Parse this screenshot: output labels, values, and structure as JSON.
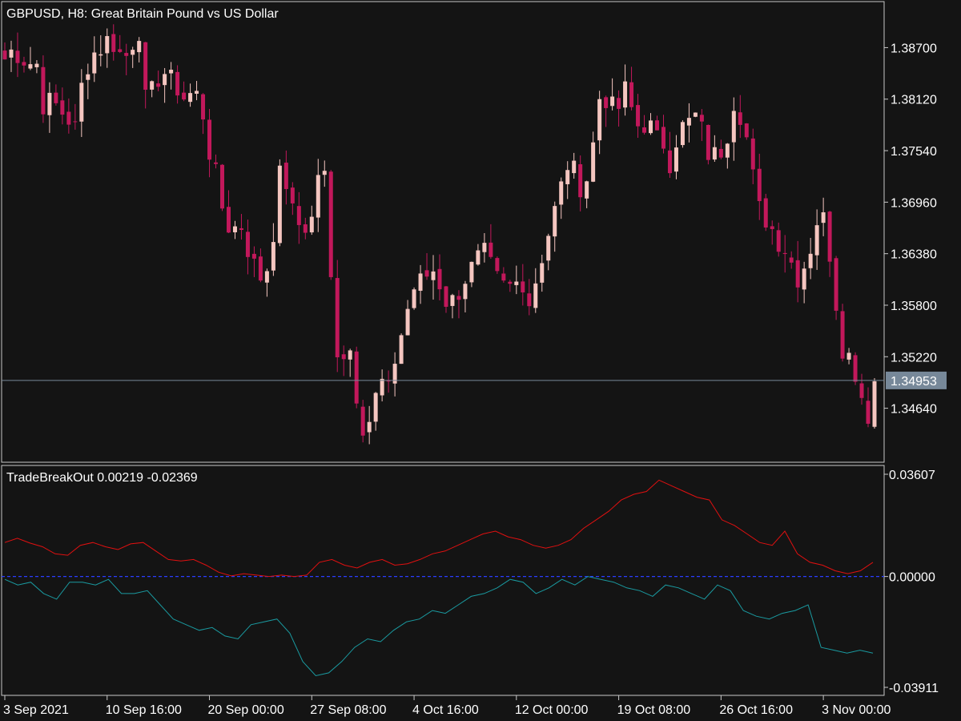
{
  "window": {
    "symbol_title": "GBPUSD, H8:  Great Britain Pound vs US Dollar"
  },
  "colors": {
    "background": "#141414",
    "frame": "#c8c8c8",
    "bull_candle": "#f5c6c0",
    "bear_candle": "#c2185b",
    "bid_line": "#778899",
    "price_label_bg": "#778899",
    "indicator_upper": "#e01010",
    "indicator_lower": "#1a9aa0",
    "zero_line": "#2a3cff"
  },
  "chart_data": [
    {
      "type": "candlestick",
      "title": "GBPUSD, H8:  Great Britain Pound vs US Dollar",
      "ylim": [
        1.3405,
        1.392
      ],
      "y_ticks": [
        1.387,
        1.3812,
        1.3754,
        1.3696,
        1.3638,
        1.358,
        1.3522,
        1.3464
      ],
      "y_tick_labels": [
        "1.38700",
        "1.38120",
        "1.37540",
        "1.36960",
        "1.36380",
        "1.35800",
        "1.35220",
        "1.34640"
      ],
      "current_price": 1.34953,
      "current_price_label": "1.34953",
      "close_path": [
        1.3857,
        1.3868,
        1.3862,
        1.3852,
        1.3856,
        1.3802,
        1.381,
        1.38,
        1.3792,
        1.3778,
        1.3838,
        1.3862,
        1.3868,
        1.3878,
        1.3875,
        1.3858,
        1.3864,
        1.3905,
        1.3805,
        1.3822,
        1.3848,
        1.3833,
        1.3826,
        1.3812,
        1.382,
        1.3812,
        1.3758,
        1.3722,
        1.368,
        1.3662,
        1.3676,
        1.3645,
        1.362,
        1.3608,
        1.364,
        1.3725,
        1.3718,
        1.367,
        1.3672,
        1.3665,
        1.373,
        1.3722,
        1.3538,
        1.3525,
        1.3535,
        1.3475,
        1.3435,
        1.3466,
        1.3495,
        1.348,
        1.353,
        1.356,
        1.3598,
        1.3605,
        1.3615,
        1.3622,
        1.3588,
        1.3582,
        1.3598,
        1.3615,
        1.3625,
        1.364,
        1.3622,
        1.3605,
        1.3598,
        1.3602,
        1.3612,
        1.3582,
        1.3618,
        1.365,
        1.368,
        1.3712,
        1.3745,
        1.372,
        1.3712,
        1.3755,
        1.382,
        1.3812,
        1.379,
        1.3825,
        1.38,
        1.3778,
        1.379,
        1.3765,
        1.3765,
        1.374,
        1.378,
        1.378,
        1.3795,
        1.3775,
        1.3745,
        1.375,
        1.3765,
        1.3812,
        1.3795,
        1.3755,
        1.369,
        1.368,
        1.3665,
        1.365,
        1.364,
        1.361,
        1.3625,
        1.365,
        1.369,
        1.366,
        1.359,
        1.353,
        1.352,
        1.3495,
        1.345,
        1.3495
      ],
      "x_tick_labels": [
        "3 Sep 2021",
        "10 Sep 16:00",
        "20 Sep 00:00",
        "27 Sep 08:00",
        "4 Oct 16:00",
        "12 Oct 00:00",
        "19 Oct 08:00",
        "26 Oct 16:00",
        "3 Nov 00:00"
      ],
      "x_tick_bar_index": [
        0,
        16,
        32,
        48,
        64,
        80,
        96,
        112,
        128
      ]
    },
    {
      "type": "line",
      "title": "TradeBreakOut 0.00219 -0.02369",
      "ylim": [
        -0.03911,
        0.03607
      ],
      "y_ticks": [
        0.03607,
        0.0,
        -0.03911
      ],
      "y_tick_labels": [
        "0.03607",
        "0.00000",
        "-0.03911"
      ],
      "zero_line": 0.0,
      "series": [
        {
          "color": "upper",
          "values": [
            0.012,
            0.0135,
            0.0118,
            0.0105,
            0.008,
            0.0075,
            0.011,
            0.012,
            0.0105,
            0.0095,
            0.0115,
            0.012,
            0.009,
            0.006,
            0.0055,
            0.006,
            0.004,
            0.0015,
            0.0002,
            0.001,
            0.0005,
            0.0,
            0.0005,
            0.0,
            0.0005,
            0.005,
            0.006,
            0.004,
            0.003,
            0.005,
            0.006,
            0.004,
            0.0045,
            0.006,
            0.008,
            0.009,
            0.011,
            0.013,
            0.015,
            0.016,
            0.014,
            0.013,
            0.011,
            0.01,
            0.011,
            0.013,
            0.017,
            0.02,
            0.023,
            0.027,
            0.029,
            0.03,
            0.034,
            0.032,
            0.03,
            0.028,
            0.027,
            0.02,
            0.018,
            0.015,
            0.012,
            0.011,
            0.016,
            0.008,
            0.005,
            0.004,
            0.002,
            0.001,
            0.002,
            0.005
          ]
        },
        {
          "color": "lower",
          "values": [
            -0.001,
            -0.003,
            -0.002,
            -0.006,
            -0.008,
            -0.002,
            -0.002,
            -0.003,
            -0.001,
            -0.006,
            -0.006,
            -0.005,
            -0.01,
            -0.015,
            -0.017,
            -0.019,
            -0.018,
            -0.021,
            -0.022,
            -0.017,
            -0.016,
            -0.015,
            -0.02,
            -0.03,
            -0.035,
            -0.034,
            -0.03,
            -0.025,
            -0.022,
            -0.023,
            -0.019,
            -0.016,
            -0.015,
            -0.012,
            -0.013,
            -0.01,
            -0.007,
            -0.006,
            -0.004,
            -0.001,
            -0.002,
            -0.006,
            -0.004,
            -0.001,
            -0.003,
            -0.0,
            -0.001,
            -0.002,
            -0.004,
            -0.005,
            -0.007,
            -0.003,
            -0.004,
            -0.006,
            -0.008,
            -0.003,
            -0.005,
            -0.012,
            -0.014,
            -0.015,
            -0.013,
            -0.012,
            -0.01,
            -0.025,
            -0.026,
            -0.027,
            -0.026,
            -0.027
          ]
        }
      ]
    }
  ]
}
